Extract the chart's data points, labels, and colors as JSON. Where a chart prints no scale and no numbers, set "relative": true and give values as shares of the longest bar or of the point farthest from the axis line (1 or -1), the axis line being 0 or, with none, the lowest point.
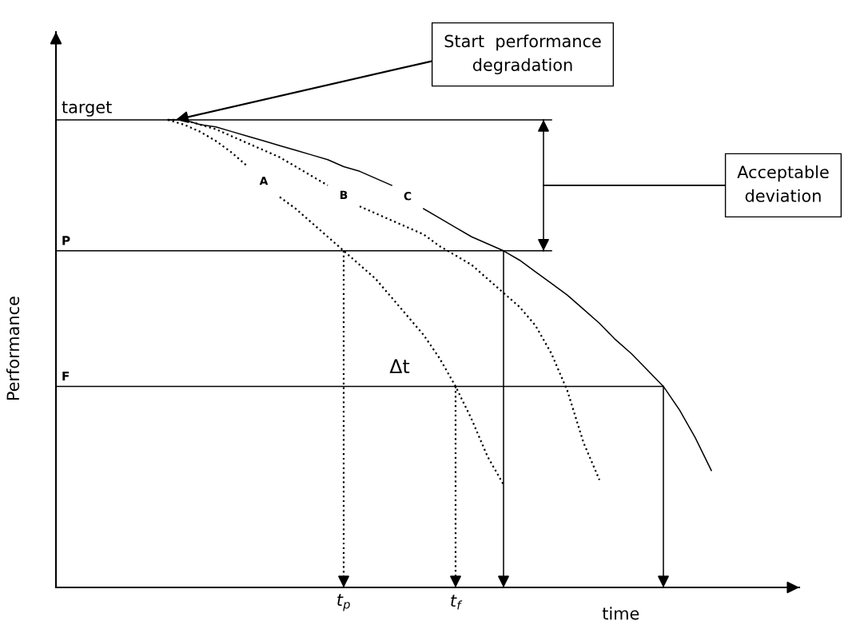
{
  "chart_data": {
    "type": "line",
    "relative": true,
    "ylabel": "Performance",
    "xlabel": "time",
    "categories": [
      null,
      null,
      null,
      null,
      null,
      null,
      null,
      null,
      null,
      null,
      null,
      null,
      null,
      null,
      null,
      null,
      null,
      null,
      "t$_{p}$",
      null,
      null,
      null,
      null,
      null,
      null,
      "t$_{f}$",
      null,
      null,
      null,
      null,
      null,
      null,
      null,
      null,
      null,
      null,
      null,
      null,
      null,
      null,
      null,
      null,
      null,
      null,
      null,
      null,
      null
    ],
    "legend": false,
    "marker": "none",
    "grid": false,
    "series": [
      {
        "line_style": "solid",
        "color": "#000000",
        "values": [
          1.0,
          1.0,
          1.0,
          1.0,
          1.0,
          1.0,
          1.0,
          1.0,
          1.0,
          1.0,
          1.0,
          1.0,
          1.0,
          1.0,
          1.0,
          1.0,
          1.0,
          1.0,
          1.0,
          1.0,
          1.0,
          1.0,
          1.0,
          1.0,
          1.0,
          1.0,
          1.0,
          1.0,
          1.0,
          1.0,
          1.0,
          1.0,
          null,
          null,
          null,
          null,
          null,
          null,
          null,
          null,
          null,
          null,
          null,
          null,
          null,
          null,
          null
        ]
      },
      {
        "line_style": "solid",
        "color": "#000000",
        "values": [
          0.72,
          0.72,
          0.72,
          0.72,
          0.72,
          0.72,
          0.72,
          0.72,
          0.72,
          0.72,
          0.72,
          0.72,
          0.72,
          0.72,
          0.72,
          0.72,
          0.72,
          0.72,
          0.72,
          0.72,
          0.72,
          0.72,
          0.72,
          0.72,
          0.72,
          0.72,
          0.72,
          0.72,
          0.72,
          0.72,
          0.72,
          0.72,
          null,
          null,
          null,
          null,
          null,
          null,
          null,
          null,
          null,
          null,
          null,
          null,
          null,
          null,
          null
        ]
      },
      {
        "line_style": "solid",
        "color": "#000000",
        "values": [
          0.43,
          0.43,
          0.43,
          0.43,
          0.43,
          0.43,
          0.43,
          0.43,
          0.43,
          0.43,
          0.43,
          0.43,
          0.43,
          0.43,
          0.43,
          0.43,
          0.43,
          0.43,
          0.43,
          0.43,
          0.43,
          0.43,
          0.43,
          0.43,
          0.43,
          0.43,
          0.43,
          0.43,
          0.43,
          0.43,
          0.43,
          0.43,
          0.43,
          0.43,
          0.43,
          0.43,
          0.43,
          0.43,
          0.43,
          null,
          null,
          null,
          null,
          null,
          null,
          null,
          null
        ]
      },
      {
        "name": "A",
        "line_style": "dotted",
        "color": "#000000",
        "values": [
          null,
          null,
          null,
          null,
          null,
          null,
          null,
          1.0,
          0.99,
          0.975,
          0.955,
          0.93,
          0.9,
          null,
          0.835,
          0.81,
          0.78,
          0.75,
          0.72,
          0.69,
          0.66,
          0.62,
          0.58,
          0.54,
          0.49,
          0.43,
          0.36,
          0.28,
          0.22,
          null,
          null,
          null,
          null,
          null,
          null,
          null,
          null,
          null,
          null,
          null,
          null,
          null,
          null,
          null,
          null,
          null,
          null
        ]
      },
      {
        "name": "B",
        "line_style": "dotted",
        "color": "#000000",
        "values": [
          null,
          null,
          null,
          null,
          null,
          null,
          null,
          1.0,
          1.0,
          0.99,
          0.98,
          0.965,
          0.95,
          0.935,
          0.92,
          0.9,
          0.88,
          0.86,
          null,
          0.815,
          0.8,
          0.785,
          0.77,
          0.755,
          0.73,
          0.71,
          0.69,
          0.66,
          0.63,
          0.6,
          0.56,
          0.5,
          0.42,
          0.31,
          0.23,
          null,
          null,
          null,
          null,
          null,
          null,
          null,
          null,
          null,
          null,
          null,
          null
        ]
      },
      {
        "name": "C",
        "line_style": "solid",
        "color": "#000000",
        "values": [
          null,
          null,
          null,
          null,
          null,
          null,
          null,
          1.0,
          1.0,
          0.99,
          0.985,
          0.975,
          0.965,
          0.955,
          0.945,
          0.935,
          0.925,
          0.915,
          0.9,
          0.89,
          0.875,
          0.86,
          null,
          0.81,
          0.79,
          0.77,
          0.75,
          0.735,
          0.72,
          0.7,
          0.675,
          0.65,
          0.625,
          0.595,
          0.565,
          0.53,
          0.5,
          0.465,
          0.43,
          0.38,
          0.32,
          0.25,
          null,
          null,
          null,
          null,
          null
        ]
      }
    ],
    "annotations": [
      "target",
      "P",
      "F",
      "Δt",
      "Start  performance\ndegradation",
      "Acceptable\ndeviation"
    ]
  }
}
